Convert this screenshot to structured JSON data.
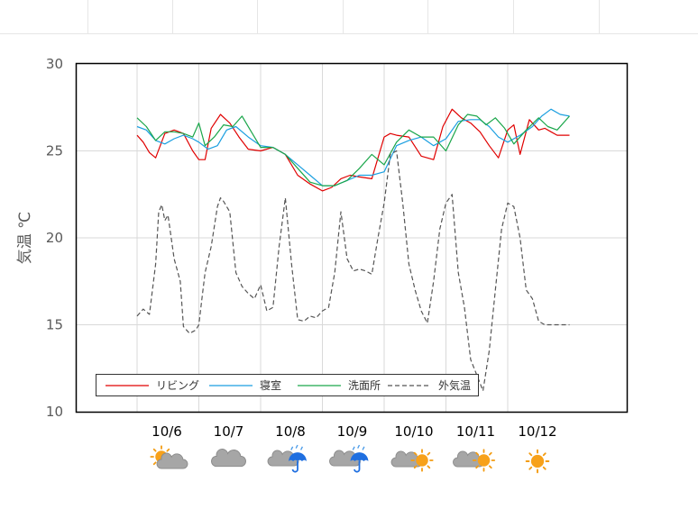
{
  "chart_data": {
    "type": "line",
    "ylabel": "気温 ℃",
    "ylim": [
      10,
      30
    ],
    "y_ticks": [
      10,
      15,
      20,
      25,
      30
    ],
    "x_labels": [
      "10/6",
      "10/7",
      "10/8",
      "10/9",
      "10/10",
      "10/11",
      "10/12"
    ],
    "grid": true,
    "legend_position": "bottom-left",
    "weather_icons": [
      {
        "date": "10/6",
        "icon": "sun-behind-cloud-icon"
      },
      {
        "date": "10/7",
        "icon": "cloud-icon"
      },
      {
        "date": "10/8",
        "icon": "cloud-with-rain-umbrella-icon"
      },
      {
        "date": "10/9",
        "icon": "cloud-with-rain-umbrella-icon"
      },
      {
        "date": "10/10",
        "icon": "cloud-and-sun-icon"
      },
      {
        "date": "10/11",
        "icon": "cloud-and-sun-icon"
      },
      {
        "date": "10/12",
        "icon": "sun-icon"
      }
    ],
    "series": [
      {
        "name": "リビング",
        "color": "#e00000",
        "dash": "solid",
        "x": [
          0,
          0.1,
          0.2,
          0.3,
          0.45,
          0.6,
          0.75,
          0.9,
          1.0,
          1.1,
          1.2,
          1.35,
          1.5,
          1.65,
          1.8,
          2.0,
          2.2,
          2.4,
          2.6,
          2.8,
          3.0,
          3.15,
          3.3,
          3.45,
          3.6,
          3.8,
          4.0,
          4.1,
          4.2,
          4.4,
          4.6,
          4.8,
          4.95,
          5.1,
          5.25,
          5.4,
          5.55,
          5.7,
          5.85,
          6.0,
          6.1,
          6.2,
          6.35,
          6.5,
          6.6,
          6.7,
          6.8,
          7.0
        ],
        "y": [
          25.9,
          25.5,
          24.9,
          24.6,
          26.0,
          26.2,
          26.0,
          25.0,
          24.5,
          24.5,
          26.3,
          27.1,
          26.6,
          25.8,
          25.1,
          25.0,
          25.2,
          24.8,
          23.6,
          23.1,
          22.7,
          22.9,
          23.4,
          23.6,
          23.5,
          23.4,
          25.8,
          26.0,
          25.9,
          25.8,
          24.7,
          24.5,
          26.4,
          27.4,
          26.9,
          26.6,
          26.1,
          25.3,
          24.6,
          26.2,
          26.5,
          24.8,
          26.8,
          26.2,
          26.3,
          26.1,
          25.9,
          25.9
        ]
      },
      {
        "name": "寝室",
        "color": "#1b9fe0",
        "dash": "solid",
        "x": [
          0,
          0.15,
          0.3,
          0.45,
          0.6,
          0.75,
          0.9,
          1.0,
          1.15,
          1.3,
          1.45,
          1.6,
          1.8,
          2.0,
          2.2,
          2.4,
          2.6,
          2.8,
          3.0,
          3.2,
          3.4,
          3.6,
          3.8,
          4.0,
          4.2,
          4.4,
          4.6,
          4.8,
          5.0,
          5.2,
          5.4,
          5.55,
          5.7,
          5.85,
          6.0,
          6.2,
          6.4,
          6.55,
          6.7,
          6.85,
          7.0
        ],
        "y": [
          26.4,
          26.2,
          25.6,
          25.4,
          25.7,
          25.9,
          25.7,
          25.5,
          25.1,
          25.3,
          26.2,
          26.4,
          25.8,
          25.3,
          25.2,
          24.8,
          24.2,
          23.6,
          23.0,
          23.0,
          23.3,
          23.6,
          23.6,
          23.8,
          25.3,
          25.6,
          25.8,
          25.3,
          25.7,
          26.7,
          26.8,
          26.8,
          26.4,
          25.8,
          25.5,
          25.9,
          26.4,
          27.0,
          27.4,
          27.1,
          27.0
        ]
      },
      {
        "name": "洗面所",
        "color": "#1aa64a",
        "dash": "solid",
        "x": [
          0,
          0.15,
          0.3,
          0.45,
          0.6,
          0.75,
          0.9,
          1.0,
          1.1,
          1.25,
          1.4,
          1.55,
          1.7,
          1.85,
          2.0,
          2.2,
          2.4,
          2.6,
          2.8,
          3.0,
          3.2,
          3.4,
          3.6,
          3.8,
          4.0,
          4.2,
          4.4,
          4.6,
          4.8,
          5.0,
          5.2,
          5.35,
          5.5,
          5.65,
          5.8,
          5.95,
          6.1,
          6.3,
          6.5,
          6.65,
          6.8,
          7.0
        ],
        "y": [
          26.9,
          26.4,
          25.6,
          26.1,
          26.1,
          26.0,
          25.8,
          26.6,
          25.3,
          25.8,
          26.5,
          26.4,
          27.0,
          26.1,
          25.2,
          25.2,
          24.8,
          24.0,
          23.2,
          23.0,
          23.0,
          23.3,
          24.0,
          24.8,
          24.2,
          25.5,
          26.2,
          25.8,
          25.8,
          25.0,
          26.5,
          27.1,
          27.0,
          26.5,
          26.9,
          26.3,
          25.4,
          26.2,
          26.9,
          26.4,
          26.2,
          27.0
        ]
      },
      {
        "name": "外気温",
        "color": "#555555",
        "dash": "dashed",
        "x": [
          0,
          0.1,
          0.2,
          0.3,
          0.35,
          0.4,
          0.45,
          0.5,
          0.6,
          0.7,
          0.75,
          0.8,
          0.85,
          0.9,
          0.95,
          1.0,
          1.05,
          1.1,
          1.2,
          1.3,
          1.35,
          1.4,
          1.45,
          1.5,
          1.6,
          1.7,
          1.8,
          1.9,
          2.0,
          2.1,
          2.2,
          2.3,
          2.4,
          2.5,
          2.6,
          2.7,
          2.8,
          2.9,
          3.0,
          3.1,
          3.2,
          3.3,
          3.4,
          3.5,
          3.6,
          3.7,
          3.8,
          3.9,
          4.0,
          4.1,
          4.2,
          4.3,
          4.4,
          4.5,
          4.6,
          4.7,
          4.8,
          4.9,
          5.0,
          5.1,
          5.2,
          5.3,
          5.4,
          5.5,
          5.6,
          5.7,
          5.8,
          5.9,
          6.0,
          6.1,
          6.2,
          6.3,
          6.4,
          6.5,
          6.6,
          6.7,
          6.8,
          6.9,
          7.0
        ],
        "y": [
          15.5,
          15.9,
          15.6,
          18.5,
          21.5,
          21.9,
          21.0,
          21.3,
          18.8,
          17.5,
          14.9,
          14.7,
          14.5,
          14.6,
          14.7,
          15.0,
          16.5,
          18.0,
          19.5,
          21.8,
          22.3,
          22.1,
          21.8,
          21.5,
          18.0,
          17.2,
          16.8,
          16.5,
          17.3,
          15.8,
          16.0,
          19.5,
          22.3,
          18.5,
          15.3,
          15.2,
          15.5,
          15.4,
          15.8,
          16.0,
          18.0,
          21.5,
          18.8,
          18.1,
          18.2,
          18.1,
          17.9,
          20.0,
          22.0,
          24.8,
          25.0,
          22.0,
          18.5,
          17.0,
          15.8,
          15.1,
          17.5,
          20.5,
          22.0,
          22.5,
          18.0,
          16.0,
          13.0,
          12.1,
          11.2,
          13.5,
          17.0,
          20.5,
          22.0,
          21.8,
          20.0,
          17.0,
          16.5,
          15.2,
          15.0,
          15.0,
          15.0,
          15.0,
          15.0
        ]
      }
    ]
  }
}
